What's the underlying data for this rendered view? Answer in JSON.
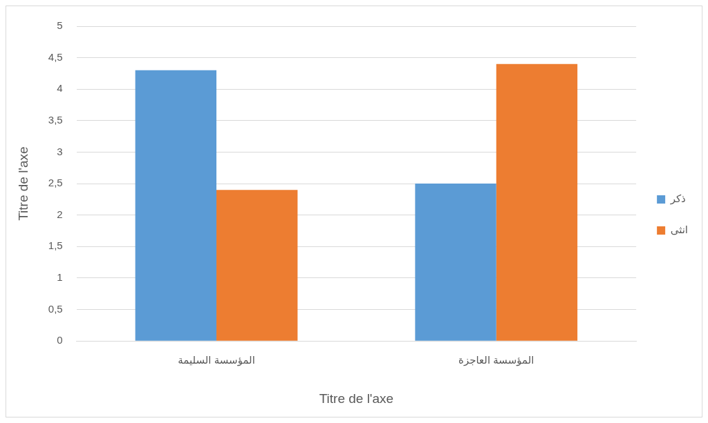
{
  "chart_data": {
    "type": "bar",
    "xlabel": "Titre de l'axe",
    "ylabel": "Titre de l'axe",
    "categories": [
      "المؤسسة السليمة",
      "المؤسسة العاجزة"
    ],
    "series": [
      {
        "name": "ذكر",
        "color": "#5b9bd5",
        "values": [
          4.3,
          2.5
        ]
      },
      {
        "name": "انثى",
        "color": "#ed7d31",
        "values": [
          2.4,
          4.4
        ]
      }
    ],
    "ylim": [
      0,
      5
    ],
    "yticks": [
      0,
      {
        "value": 0.5,
        "label": "0,5"
      },
      1,
      {
        "value": 1.5,
        "label": "1,5"
      },
      2,
      {
        "value": 2.5,
        "label": "2,5"
      },
      3,
      {
        "value": 3.5,
        "label": "3,5"
      },
      4,
      {
        "value": 4.5,
        "label": "4,5"
      },
      5
    ],
    "grid": "y",
    "legend": "right"
  }
}
